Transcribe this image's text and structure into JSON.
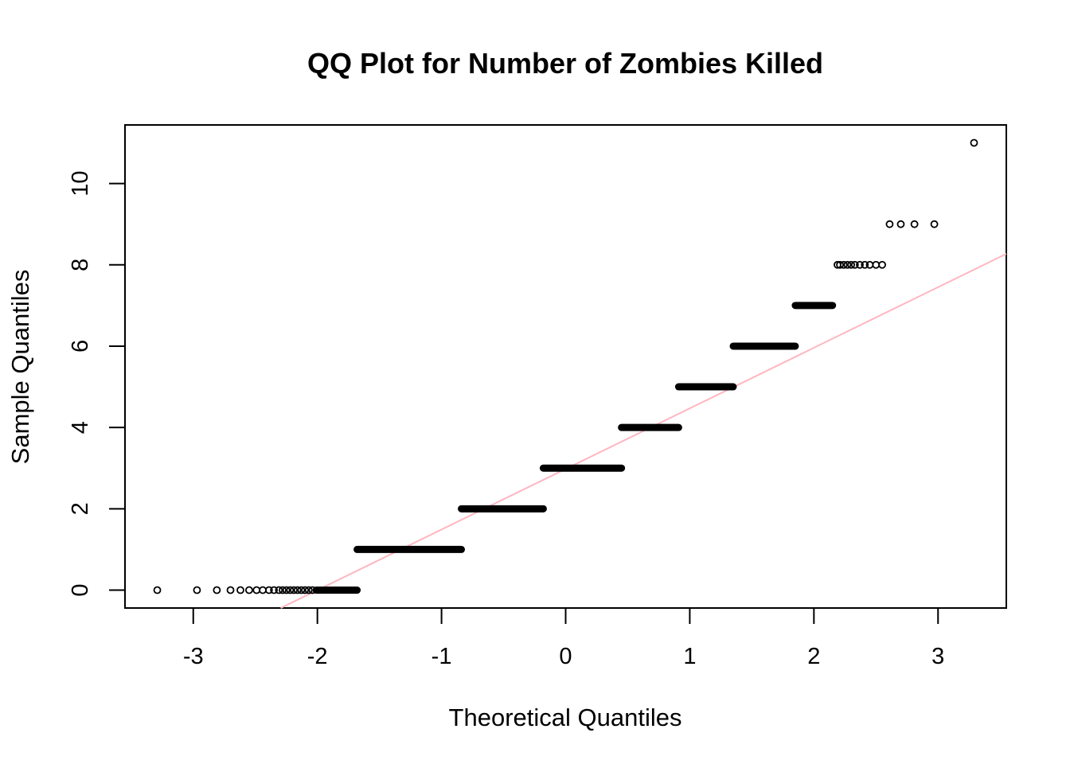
{
  "chart_data": {
    "type": "scatter",
    "title": "QQ Plot for Number of Zombies Killed",
    "xlabel": "Theoretical Quantiles",
    "ylabel": "Sample Quantiles",
    "xlim": [
      -3.55,
      3.55
    ],
    "ylim": [
      -0.44,
      11.44
    ],
    "xticks": [
      -3,
      -2,
      -1,
      0,
      1,
      2,
      3
    ],
    "xtick_labels": [
      "-3",
      "-2",
      "-1",
      "0",
      "1",
      "2",
      "3"
    ],
    "yticks": [
      0,
      2,
      4,
      6,
      8,
      10
    ],
    "ytick_labels": [
      "0",
      "2",
      "4",
      "6",
      "8",
      "10"
    ],
    "grid": false,
    "legend": false,
    "point_color": "#000000",
    "line_color": "#FFB6C1",
    "reference_line": {
      "x1": -2.0,
      "y1": 0.0,
      "x2": 3.55,
      "y2": 8.27
    },
    "series": [
      {
        "x": [
          -3.29,
          -2.97,
          -2.81,
          -2.7,
          -2.62,
          -2.55,
          -2.49,
          -2.44,
          -2.39,
          -2.35,
          -2.31,
          -2.28,
          -2.25,
          -2.22,
          -2.19,
          -2.16,
          -2.13,
          -2.1,
          -2.07,
          -2.04
        ],
        "y": [
          0,
          0,
          0,
          0,
          0,
          0,
          0,
          0,
          0,
          0,
          0,
          0,
          0,
          0,
          0,
          0,
          0,
          0,
          0,
          0
        ]
      },
      {
        "x": [
          2.19,
          2.21,
          2.24,
          2.27,
          2.3,
          2.33,
          2.37,
          2.41,
          2.45,
          2.5,
          2.55
        ],
        "y": [
          8,
          8,
          8,
          8,
          8,
          8,
          8,
          8,
          8,
          8,
          8
        ]
      },
      {
        "x": [
          2.61,
          2.7,
          2.81,
          2.97
        ],
        "y": [
          9,
          9,
          9,
          9
        ]
      },
      {
        "x": [
          3.29
        ],
        "y": [
          11
        ]
      }
    ],
    "dense_bands": [
      {
        "y": 0,
        "x_start": -2.01,
        "x_end": -1.68
      },
      {
        "y": 1,
        "x_start": -1.68,
        "x_end": -0.84
      },
      {
        "y": 2,
        "x_start": -0.84,
        "x_end": -0.18
      },
      {
        "y": 3,
        "x_start": -0.18,
        "x_end": 0.45
      },
      {
        "y": 4,
        "x_start": 0.45,
        "x_end": 0.91
      },
      {
        "y": 5,
        "x_start": 0.91,
        "x_end": 1.35
      },
      {
        "y": 6,
        "x_start": 1.35,
        "x_end": 1.85
      },
      {
        "y": 7,
        "x_start": 1.85,
        "x_end": 2.15
      }
    ]
  }
}
